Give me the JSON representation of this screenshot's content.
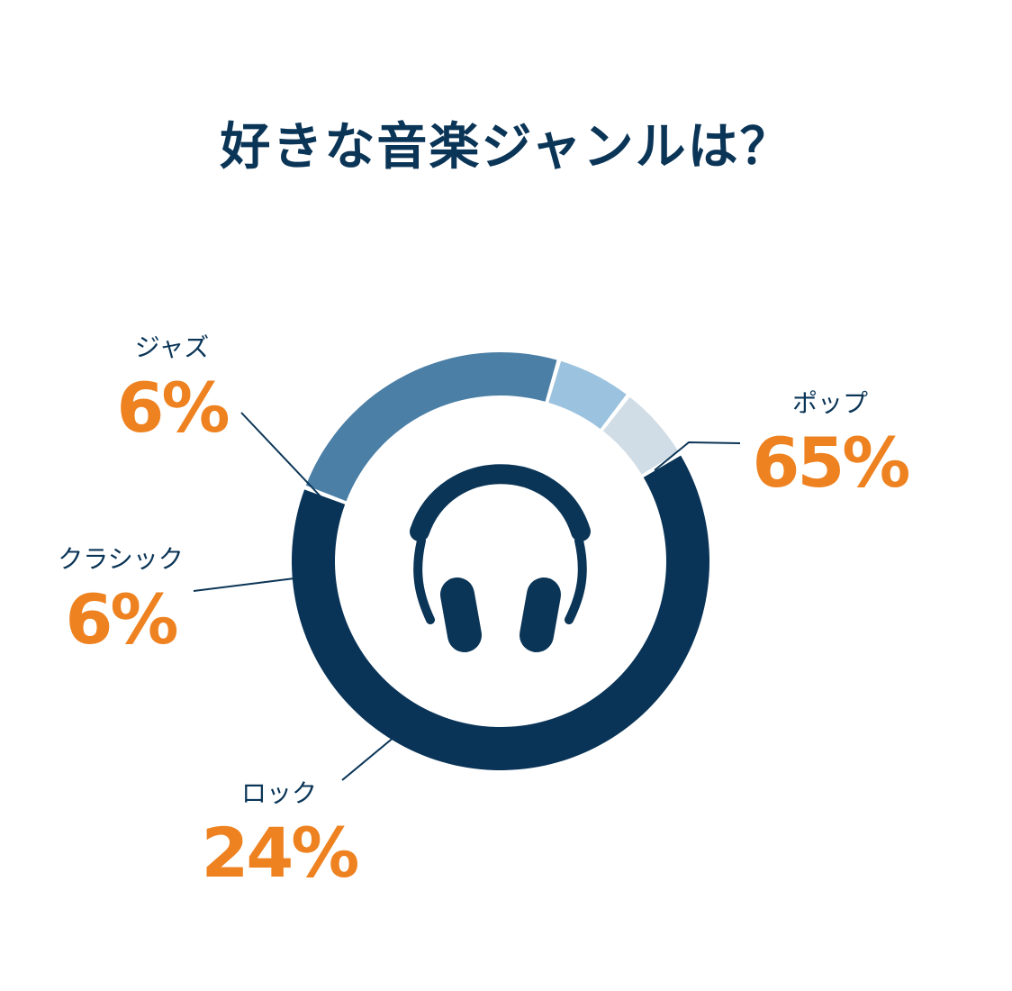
{
  "title": "好きな音楽ジャンルは？",
  "icon": "headphones-icon",
  "colors": {
    "title": "#0b3557",
    "value": "#ee8220",
    "leader": "#0b3557"
  },
  "chart_data": {
    "type": "pie",
    "style": "donut",
    "title": "好きな音楽ジャンルは？",
    "slices": [
      {
        "label": "ポップ",
        "value": 65,
        "display": "65%",
        "color": "#0a3457"
      },
      {
        "label": "ロック",
        "value": 24,
        "display": "24%",
        "color": "#4b7fa6"
      },
      {
        "label": "クラシック",
        "value": 6,
        "display": "6%",
        "color": "#9bc2de"
      },
      {
        "label": "ジャズ",
        "value": 6,
        "display": "6%",
        "color": "#d1dde6"
      }
    ]
  }
}
